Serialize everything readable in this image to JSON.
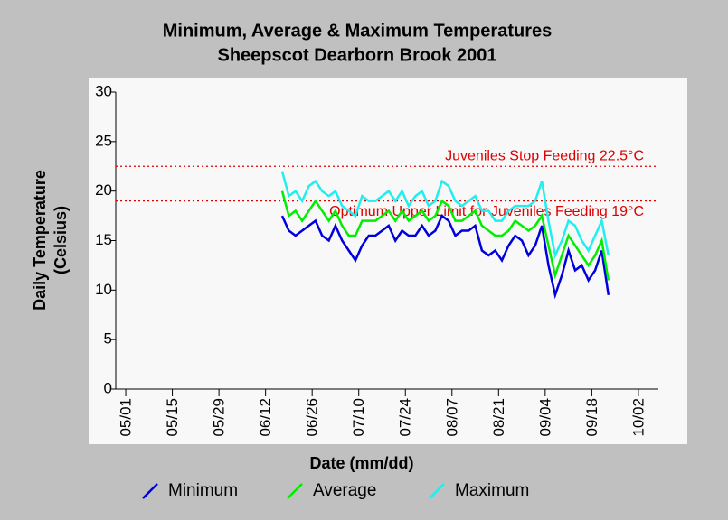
{
  "chart_data": {
    "type": "line",
    "title": "Minimum, Average & Maximum Temperatures",
    "subtitle": "Sheepscot Dearborn Brook 2001",
    "xlabel": "Date (mm/dd)",
    "ylabel": "Daily Temperature",
    "ylabel2": "(Celsius)",
    "x": [
      "06/17",
      "06/19",
      "06/21",
      "06/23",
      "06/25",
      "06/27",
      "06/29",
      "07/01",
      "07/03",
      "07/05",
      "07/07",
      "07/09",
      "07/11",
      "07/13",
      "07/15",
      "07/17",
      "07/19",
      "07/21",
      "07/23",
      "07/25",
      "07/27",
      "07/29",
      "07/31",
      "08/02",
      "08/04",
      "08/06",
      "08/08",
      "08/10",
      "08/12",
      "08/14",
      "08/16",
      "08/18",
      "08/20",
      "08/22",
      "08/24",
      "08/26",
      "08/28",
      "08/30",
      "09/01",
      "09/03",
      "09/05",
      "09/07",
      "09/09",
      "09/11",
      "09/13",
      "09/15",
      "09/17",
      "09/19",
      "09/21",
      "09/23"
    ],
    "series": [
      {
        "name": "Minimum",
        "color": "#0000dd",
        "values": [
          17.5,
          16,
          15.5,
          16,
          16.5,
          17,
          15.5,
          15,
          16.5,
          15,
          14,
          13,
          14.5,
          15.5,
          15.5,
          16,
          16.5,
          15,
          16,
          15.5,
          15.5,
          16.5,
          15.5,
          16,
          17.5,
          17,
          15.5,
          16,
          16,
          16.5,
          14,
          13.5,
          14,
          13,
          14.5,
          15.5,
          15,
          13.5,
          14.5,
          16.5,
          12.5,
          9.5,
          11.5,
          14,
          12,
          12.5,
          11,
          12,
          14,
          9.5
        ]
      },
      {
        "name": "Average",
        "color": "#00ee00",
        "values": [
          20,
          17.5,
          18,
          17,
          18,
          19,
          18,
          17,
          18,
          16.5,
          15.5,
          15.5,
          17,
          17,
          17,
          17.5,
          18,
          17,
          18,
          17,
          17.5,
          18,
          17,
          17.5,
          19,
          18.5,
          17,
          17,
          17.5,
          18,
          16.5,
          16,
          15.5,
          15.5,
          16,
          17,
          16.5,
          16,
          16.5,
          17.5,
          14.5,
          11.5,
          13.5,
          15.5,
          14.5,
          13.5,
          12.5,
          13.5,
          15,
          11
        ]
      },
      {
        "name": "Maximum",
        "color": "#22eeee",
        "values": [
          22,
          19.5,
          20,
          19,
          20.5,
          21,
          20,
          19.5,
          20,
          18.5,
          18,
          17.5,
          19.5,
          19,
          19,
          19.5,
          20,
          19,
          20,
          18.5,
          19.5,
          20,
          18.5,
          19,
          21,
          20.5,
          19,
          18.5,
          19,
          19.5,
          18,
          18,
          17,
          17,
          18,
          18.5,
          18.5,
          18.5,
          19,
          21,
          17,
          13.5,
          15,
          17,
          16.5,
          15,
          14,
          15.5,
          17,
          13.5
        ]
      }
    ],
    "reference_lines": [
      {
        "value": 22.5,
        "label": "Juveniles Stop Feeding 22.5°C",
        "color": "#dd0000"
      },
      {
        "value": 19,
        "label": "Optimum Upper Limit for Juveniles Feeding 19°C",
        "color": "#dd0000"
      }
    ],
    "xlim": [
      "04/28",
      "10/08"
    ],
    "xticks": [
      "05/01",
      "05/15",
      "05/29",
      "06/12",
      "06/26",
      "07/10",
      "07/24",
      "08/07",
      "08/21",
      "09/04",
      "09/18",
      "10/02"
    ],
    "ylim": [
      0,
      30
    ],
    "yticks": [
      0,
      5,
      10,
      15,
      20,
      25,
      30
    ]
  }
}
